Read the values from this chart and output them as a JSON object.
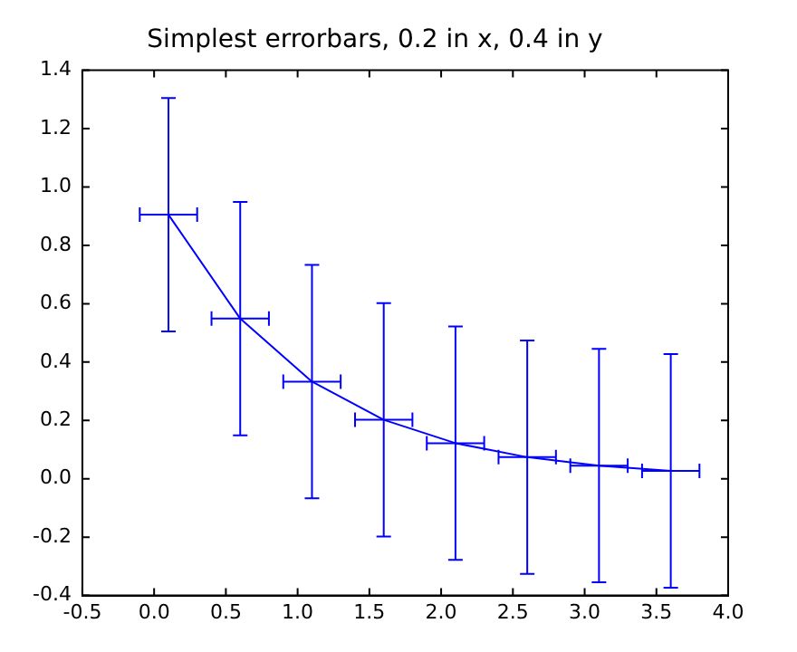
{
  "chart_data": {
    "type": "line",
    "title": "Simplest errorbars, 0.2 in x, 0.4 in y",
    "x": [
      0.1,
      0.6,
      1.1,
      1.6,
      2.1,
      2.6,
      3.1,
      3.6
    ],
    "series": [
      {
        "color": "#0000ff",
        "values": [
          0.905,
          0.549,
          0.333,
          0.202,
          0.122,
          0.074,
          0.045,
          0.027
        ],
        "errors": [
          0.4,
          0.4,
          0.4,
          0.4,
          0.4,
          0.4,
          0.4,
          0.4
        ],
        "xerrors": [
          0.2,
          0.2,
          0.2,
          0.2,
          0.2,
          0.2,
          0.2,
          0.2
        ]
      }
    ],
    "xlim": [
      -0.5,
      4.0
    ],
    "xticks": [
      -0.5,
      {
        "value": 0,
        "label": "0.0"
      },
      0.5,
      {
        "value": 1,
        "label": "1.0"
      },
      1.5,
      {
        "value": 2,
        "label": "2.0"
      },
      2.5,
      {
        "value": 3,
        "label": "3.0"
      },
      3.5,
      {
        "value": 4,
        "label": "4.0"
      }
    ],
    "ylim": [
      -0.4,
      1.4
    ],
    "yticks": [
      -0.4,
      -0.2,
      {
        "value": 0,
        "label": "0.0"
      },
      0.2,
      0.4,
      0.6,
      0.8,
      {
        "value": 1,
        "label": "1.0"
      },
      1.2,
      1.4
    ],
    "grid": false,
    "legend": false,
    "marker": "none",
    "line_style": "solid"
  }
}
